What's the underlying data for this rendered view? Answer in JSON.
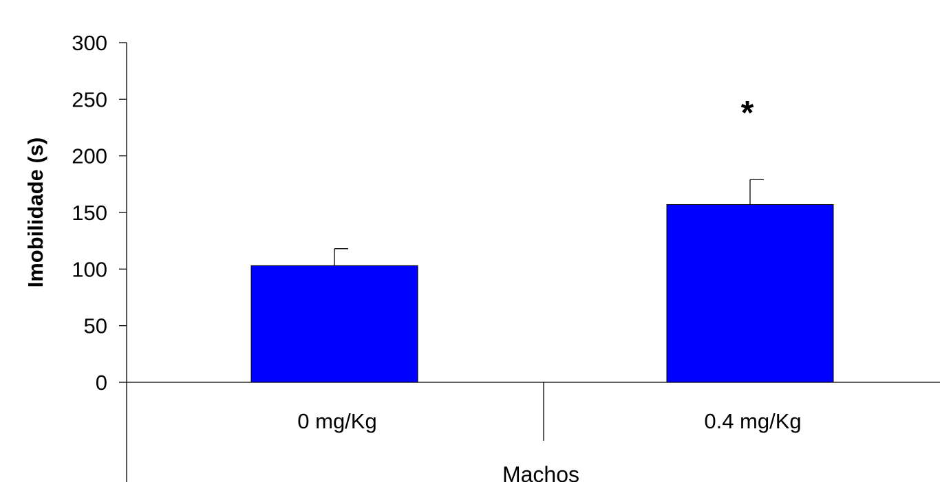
{
  "chart_data": {
    "type": "bar",
    "categories": [
      "0 mg/Kg",
      "0.4 mg/Kg"
    ],
    "values": [
      103,
      157
    ],
    "errors": [
      15,
      22
    ],
    "group_label": "Machos",
    "xlabel": "Machos",
    "ylabel": "Imobilidade (s)",
    "ylim": [
      0,
      300
    ],
    "yticks": [
      0,
      50,
      100,
      150,
      200,
      250,
      300
    ],
    "annotations": [
      {
        "text": "*",
        "category": "0.4 mg/Kg"
      }
    ],
    "bar_color": "#0000FF",
    "grid": false,
    "legend": "none"
  }
}
